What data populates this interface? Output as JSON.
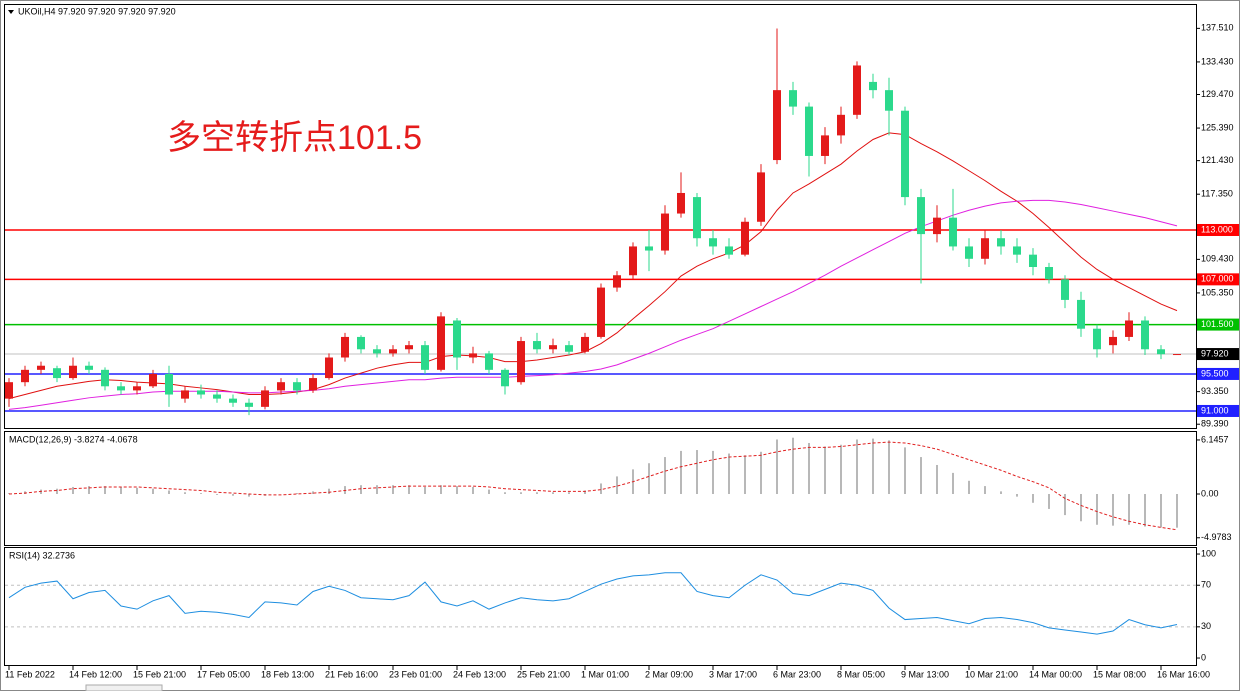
{
  "header": {
    "symbol_line": "UKOil,H4  97.920 97.920 97.920 97.920"
  },
  "chart_data": [
    {
      "type": "candlestick",
      "annotation": "多空转折点101.5",
      "categories": [
        "11 Feb 2022",
        null,
        null,
        null,
        "14 Feb 12:00",
        null,
        null,
        null,
        "15 Feb 21:00",
        null,
        null,
        null,
        "17 Feb 05:00",
        null,
        null,
        null,
        "18 Feb 13:00",
        null,
        null,
        null,
        "21 Feb 16:00",
        null,
        null,
        null,
        "23 Feb 01:00",
        null,
        null,
        null,
        "24 Feb 13:00",
        null,
        null,
        null,
        "25 Feb 21:00",
        null,
        null,
        null,
        "1 Mar 01:00",
        null,
        null,
        null,
        "2 Mar 09:00",
        null,
        null,
        null,
        "3 Mar 17:00",
        null,
        null,
        null,
        "6 Mar 23:00",
        null,
        null,
        null,
        "8 Mar 05:00",
        null,
        null,
        null,
        "9 Mar 13:00",
        null,
        null,
        null,
        "10 Mar 21:00",
        null,
        null,
        null,
        "14 Mar 00:00",
        null,
        null,
        null,
        "15 Mar 08:00",
        null,
        null,
        null,
        "16 Mar 16:00",
        null
      ],
      "open": [
        92.5,
        94.5,
        96,
        96.2,
        95,
        96.5,
        96,
        94,
        93.5,
        94,
        95.5,
        92.5,
        93.5,
        93,
        92.5,
        92,
        91.5,
        93.5,
        94.5,
        93.5,
        95,
        97.5,
        100,
        98.5,
        98,
        98.5,
        99,
        96,
        102,
        97.5,
        98,
        96,
        94.5,
        99.5,
        98.5,
        99,
        98.2,
        100,
        106,
        107.5,
        111,
        110.5,
        115,
        117,
        112,
        111,
        110,
        114,
        121.5,
        130,
        128,
        122,
        124.5,
        127,
        131,
        130,
        127.5,
        117,
        112.5,
        114.5,
        111,
        109.5,
        112,
        111,
        110,
        108.5,
        107,
        104.5,
        101,
        99,
        100,
        102,
        98.5,
        97.92
      ],
      "high": [
        95,
        96.5,
        97,
        96.5,
        97.5,
        97,
        96.3,
        94.5,
        94.5,
        96,
        96.5,
        94,
        94.2,
        93.5,
        93,
        92.5,
        94,
        95,
        95,
        95.5,
        98,
        100.5,
        100.2,
        99,
        99,
        99.5,
        99.5,
        103,
        102.3,
        98.8,
        98.3,
        96.2,
        100,
        100.5,
        99.8,
        99.5,
        100.5,
        106.5,
        108,
        111.5,
        113,
        116,
        120,
        117.5,
        113,
        112,
        114.5,
        121,
        137.5,
        131,
        128.5,
        125.5,
        128,
        133.5,
        132,
        131.5,
        128,
        118,
        116,
        118,
        112,
        113,
        113,
        112,
        110.8,
        109,
        107.5,
        105.5,
        101.5,
        100.8,
        103,
        102.5,
        99,
        97.92
      ],
      "low": [
        91.5,
        94,
        95.5,
        94.5,
        94.8,
        95.5,
        93.5,
        93,
        93,
        93.8,
        91.5,
        92,
        92.5,
        92,
        91.5,
        90.5,
        91.2,
        93,
        93,
        93.2,
        94.8,
        97,
        98,
        97.5,
        97.6,
        98,
        95.5,
        95.8,
        96,
        96.8,
        95.5,
        93,
        94.2,
        98,
        98,
        97.8,
        98,
        99.8,
        105.5,
        107,
        108,
        110,
        114.5,
        111,
        110,
        109.5,
        109.8,
        113.5,
        121,
        127,
        119.5,
        121,
        123.5,
        126.5,
        129,
        124.5,
        116,
        106.5,
        111.5,
        110.5,
        108.5,
        108.8,
        110,
        109,
        107.5,
        106.5,
        103.5,
        100,
        97.5,
        98,
        99.5,
        97.8,
        97.3,
        97.92
      ],
      "close": [
        94.5,
        96,
        96.5,
        95,
        96.5,
        96,
        94,
        93.5,
        94,
        95.5,
        93,
        93.5,
        93,
        92.5,
        92,
        91.5,
        93.5,
        94.5,
        93.5,
        95,
        97.5,
        100,
        98.5,
        98,
        98.5,
        99,
        96,
        102.5,
        97.5,
        98,
        96,
        94,
        99.5,
        98.5,
        99,
        98.2,
        100,
        106,
        107.5,
        111,
        110.5,
        115,
        117.5,
        112,
        111,
        110,
        114,
        120,
        130,
        128,
        122,
        124.5,
        127,
        133,
        130,
        127.5,
        117,
        112.5,
        114.5,
        111,
        109.5,
        112,
        111,
        110,
        108.5,
        107,
        104.5,
        101,
        98.5,
        100,
        102,
        98.5,
        97.9,
        97.92
      ],
      "up_color": "#e31a1a",
      "down_color": "#2bd98c",
      "ma": [
        {
          "color": "#e01010",
          "values": [
            92.5,
            93,
            93.5,
            94,
            94.3,
            94.6,
            94.8,
            94.7,
            94.5,
            94.4,
            94.3,
            94,
            93.8,
            93.6,
            93.3,
            93,
            93,
            93.1,
            93.3,
            93.6,
            94.2,
            95,
            95.6,
            96.2,
            96.6,
            96.9,
            96.9,
            97.6,
            97.8,
            97.7,
            97.5,
            97,
            97,
            97.2,
            97.5,
            97.8,
            98.2,
            99.2,
            100.5,
            102.2,
            103.8,
            105.5,
            107.4,
            108.6,
            109.5,
            110.2,
            111.2,
            112.8,
            115.4,
            117.5,
            118.6,
            119.8,
            121,
            122.6,
            124,
            124.8,
            124.6,
            123.5,
            122.5,
            121.4,
            120.2,
            119,
            117.7,
            116.5,
            115,
            113.3,
            111.5,
            109.7,
            108.2,
            107,
            106,
            105,
            104,
            103.2
          ]
        },
        {
          "color": "#e020e0",
          "values": [
            91.2,
            91.4,
            91.7,
            92,
            92.3,
            92.6,
            92.8,
            93,
            93.1,
            93.3,
            93.4,
            93.4,
            93.4,
            93.4,
            93.3,
            93.2,
            93.2,
            93.3,
            93.4,
            93.5,
            93.7,
            94,
            94.2,
            94.4,
            94.6,
            94.8,
            94.8,
            95,
            95.1,
            95.1,
            95.1,
            95.1,
            95.2,
            95.3,
            95.4,
            95.6,
            95.8,
            96.1,
            96.6,
            97.3,
            98,
            98.8,
            99.6,
            100.3,
            101,
            101.9,
            102.8,
            103.7,
            104.6,
            105.5,
            106.5,
            107.5,
            108.6,
            109.6,
            110.6,
            111.6,
            112.6,
            113.4,
            114.1,
            114.8,
            115.4,
            115.9,
            116.3,
            116.5,
            116.6,
            116.6,
            116.4,
            116.1,
            115.7,
            115.3,
            114.9,
            114.5,
            114,
            113.5
          ]
        }
      ],
      "levels": [
        {
          "value": 113,
          "label": "113.000",
          "color": "#ff0000"
        },
        {
          "value": 107,
          "label": "107.000",
          "color": "#ff0000"
        },
        {
          "value": 101.5,
          "label": "101.500",
          "color": "#00c000"
        },
        {
          "value": 95.5,
          "label": "95.500",
          "color": "#2020ff"
        },
        {
          "value": 91,
          "label": "91.000",
          "color": "#2020ff"
        }
      ],
      "last_price": {
        "value": 97.92,
        "label": "97.920"
      },
      "ylim": [
        88.93,
        140.35
      ],
      "yticks": [
        {
          "value": 137.51,
          "label": "137.510"
        },
        {
          "value": 133.43,
          "label": "133.430"
        },
        {
          "value": 129.47,
          "label": "129.470"
        },
        {
          "value": 125.39,
          "label": "125.390"
        },
        {
          "value": 121.43,
          "label": "121.430"
        },
        {
          "value": 117.35,
          "label": "117.350"
        },
        {
          "value": 109.43,
          "label": "109.430"
        },
        {
          "value": 105.35,
          "label": "105.350"
        },
        {
          "value": 93.35,
          "label": "93.350"
        },
        {
          "value": 89.39,
          "label": "89.390"
        }
      ]
    },
    {
      "type": "macd",
      "title": "MACD(12,26,9) -3.8274 -4.0678",
      "values": [
        0.1,
        0.3,
        0.5,
        0.6,
        0.8,
        0.9,
        0.9,
        0.8,
        0.7,
        0.6,
        0.4,
        0.2,
        0.1,
        -0.1,
        -0.2,
        -0.3,
        -0.2,
        0,
        0.1,
        0.3,
        0.6,
        0.9,
        1,
        1,
        1,
        1,
        0.8,
        1,
        0.9,
        0.8,
        0.5,
        0.2,
        0.2,
        0.2,
        0.2,
        0.2,
        0.4,
        1.2,
        2,
        2.8,
        3.5,
        4.2,
        4.9,
        5,
        4.9,
        4.6,
        4.4,
        4.8,
        6.2,
        6.4,
        5.8,
        5.4,
        5.6,
        6.2,
        6.3,
        6.1,
        5.3,
        4.2,
        3.3,
        2.4,
        1.5,
        0.9,
        0.3,
        -0.3,
        -1,
        -1.7,
        -2.4,
        -3.1,
        -3.5,
        -3.6,
        -3.5,
        -3.7,
        -3.8,
        -3.83
      ],
      "signal": [
        0,
        0.1,
        0.3,
        0.4,
        0.6,
        0.7,
        0.8,
        0.8,
        0.8,
        0.7,
        0.6,
        0.5,
        0.4,
        0.2,
        0.1,
        0,
        -0.1,
        -0.1,
        0,
        0.1,
        0.2,
        0.4,
        0.6,
        0.7,
        0.8,
        0.9,
        0.9,
        0.9,
        0.9,
        0.9,
        0.8,
        0.6,
        0.5,
        0.4,
        0.3,
        0.3,
        0.3,
        0.5,
        0.9,
        1.4,
        2,
        2.6,
        3.1,
        3.5,
        3.9,
        4.2,
        4.3,
        4.4,
        4.8,
        5.1,
        5.3,
        5.3,
        5.4,
        5.6,
        5.8,
        5.9,
        5.8,
        5.5,
        5.1,
        4.5,
        3.9,
        3.3,
        2.7,
        2,
        1.4,
        0.7,
        -0.5,
        -1.3,
        -2,
        -2.6,
        -3.1,
        -3.5,
        -3.8,
        -4.07
      ],
      "bar_color": "#b8b8b8",
      "signal_color": "#e02020",
      "ylim": [
        -5.8,
        7.05
      ],
      "yticks": [
        6.1457,
        {
          "value": 0,
          "label": "0.00"
        },
        -4.9783
      ]
    },
    {
      "type": "line",
      "title": "RSI(14) 32.2736",
      "values": [
        58,
        68,
        72,
        74,
        57,
        63,
        65,
        50,
        47,
        55,
        60,
        43,
        45,
        44,
        42,
        39,
        54,
        53,
        51,
        64,
        69,
        65,
        58,
        57,
        56,
        60,
        73,
        54,
        50,
        55,
        47,
        53,
        58,
        56,
        55,
        57,
        64,
        71,
        76,
        79,
        80,
        82,
        82,
        64,
        60,
        58,
        70,
        80,
        75,
        62,
        60,
        66,
        72,
        70,
        65,
        48,
        37,
        38,
        39,
        36,
        33,
        38,
        39,
        37,
        34,
        29,
        27,
        25,
        23,
        26,
        37,
        32,
        29,
        32.27
      ],
      "color": "#1e8ee0",
      "levels": [
        30,
        70
      ],
      "ylim": [
        -6.7,
        105.8
      ],
      "yticks": [
        0,
        30,
        70,
        100
      ]
    }
  ]
}
